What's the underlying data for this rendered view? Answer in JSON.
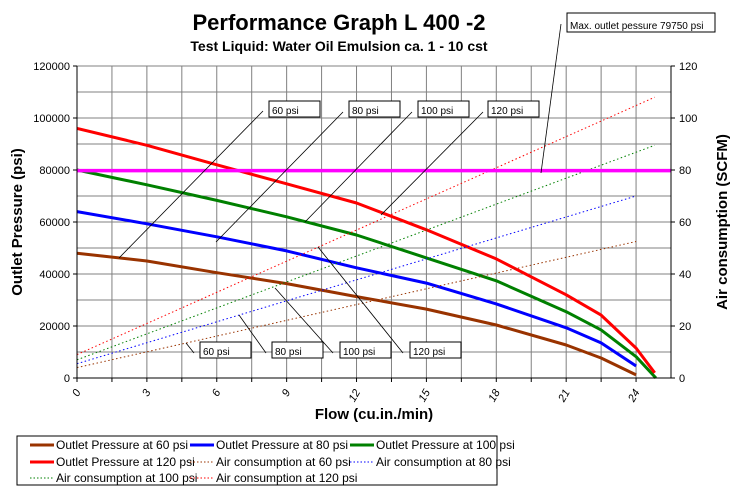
{
  "chart_data": {
    "type": "line",
    "title": "Performance Graph L 400 -2",
    "subtitle": "Test Liquid: Water Oil Emulsion ca. 1 - 10 cst",
    "xlabel": "Flow (cu.in./min)",
    "ylabel": "Outlet Pressure (psi)",
    "y2label": "Air consumption (SCFM)",
    "xlim": [
      0,
      25.5
    ],
    "ylim": [
      0,
      120000
    ],
    "y2lim": [
      0,
      120
    ],
    "xticks": [
      "0",
      "3",
      "6",
      "9",
      "12",
      "15",
      "18",
      "21",
      "24"
    ],
    "yticks": [
      "0",
      "20000",
      "40000",
      "60000",
      "80000",
      "100000",
      "120000"
    ],
    "y2ticks": [
      "0",
      "20",
      "40",
      "60",
      "80",
      "100",
      "120"
    ],
    "grid": true,
    "legend_placement": "bottom",
    "max_line": {
      "value": 79750,
      "color": "#ff00ff",
      "label": "Max. outlet pessure 79750 psi"
    },
    "series": [
      {
        "name": "Outlet Pressure at 60 psi",
        "axis": "left",
        "style": "solid",
        "color": "#993300",
        "x": [
          0,
          3,
          6,
          9,
          12,
          15,
          18,
          21,
          22.5,
          24
        ],
        "y": [
          48000,
          45000,
          40500,
          36300,
          31300,
          26500,
          20400,
          12700,
          7700,
          1200
        ]
      },
      {
        "name": "Outlet Pressure at 80 psi",
        "axis": "left",
        "style": "solid",
        "color": "#0000ff",
        "x": [
          0,
          3,
          6,
          9,
          12,
          15,
          18,
          21,
          22.5,
          24
        ],
        "y": [
          64000,
          59300,
          54300,
          48900,
          42400,
          36500,
          28500,
          19300,
          13500,
          4600
        ]
      },
      {
        "name": "Outlet Pressure at 100 psi",
        "axis": "left",
        "style": "solid",
        "color": "#008000",
        "x": [
          0,
          3,
          6,
          9,
          12,
          15,
          18,
          21,
          22.5,
          24,
          24.85
        ],
        "y": [
          80000,
          74300,
          68300,
          62000,
          55000,
          46200,
          37400,
          25500,
          18500,
          8200,
          0
        ]
      },
      {
        "name": "Outlet Pressure at 120 psi",
        "axis": "left",
        "style": "solid",
        "color": "#ff0000",
        "x": [
          0,
          3,
          6,
          9,
          12,
          15,
          18,
          21,
          22.5,
          24,
          24.8
        ],
        "y": [
          96000,
          89500,
          82000,
          74700,
          67300,
          57000,
          45800,
          32000,
          24200,
          11500,
          2000
        ]
      },
      {
        "name": "Air consumption at 60 psi",
        "axis": "right",
        "style": "dotted",
        "color": "#993300",
        "x": [
          0,
          24
        ],
        "y": [
          4,
          52.5
        ]
      },
      {
        "name": "Air consumption at 80 psi",
        "axis": "right",
        "style": "dotted",
        "color": "#0000ff",
        "x": [
          0,
          24
        ],
        "y": [
          5.5,
          70
        ]
      },
      {
        "name": "Air consumption at 100 psi",
        "axis": "right",
        "style": "dotted",
        "color": "#008000",
        "x": [
          0,
          24.8
        ],
        "y": [
          7,
          89.5
        ]
      },
      {
        "name": "Air consumption at 120 psi",
        "axis": "right",
        "style": "dotted",
        "color": "#ff0000",
        "x": [
          0,
          24.8
        ],
        "y": [
          9,
          108
        ]
      }
    ],
    "annotations_outlet": [
      "60 psi",
      "80 psi",
      "100 psi",
      "120 psi"
    ],
    "annotations_air": [
      "60 psi",
      "80 psi",
      "100 psi",
      "120 psi"
    ]
  }
}
